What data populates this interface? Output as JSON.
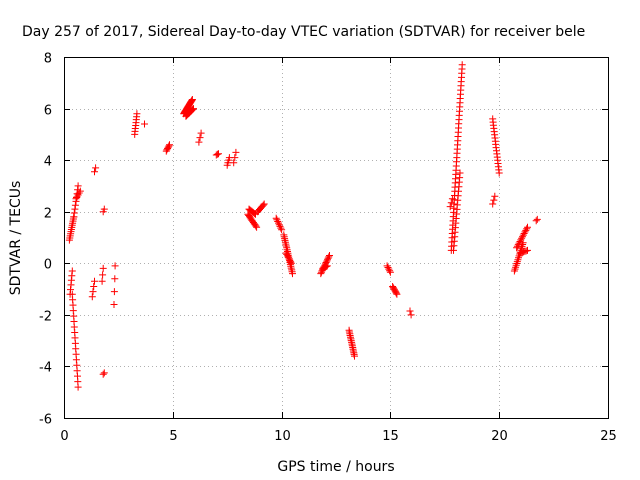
{
  "chart_data": {
    "type": "scatter",
    "title": "Day 257 of 2017, Sidereal Day-to-day VTEC variation (SDTVAR) for receiver bele",
    "xlabel": "GPS time / hours",
    "ylabel": "SDTVAR / TECUs",
    "xlim": [
      0,
      25
    ],
    "ylim": [
      -6,
      8
    ],
    "xticks": [
      0,
      5,
      10,
      15,
      20,
      25
    ],
    "yticks": [
      -6,
      -4,
      -2,
      0,
      2,
      4,
      6,
      8
    ],
    "grid": true,
    "marker": "plus",
    "color": "#ff0000",
    "series": [
      {
        "name": "SDTVAR",
        "segments": [
          {
            "x0": 0.25,
            "y0": 0.9,
            "x1": 0.45,
            "y1": 1.8,
            "n": 12
          },
          {
            "x0": 0.45,
            "y0": 1.8,
            "x1": 0.65,
            "y1": 3.0,
            "n": 9
          },
          {
            "x0": 0.55,
            "y0": 2.5,
            "x1": 0.75,
            "y1": 2.8,
            "n": 5
          },
          {
            "x0": 0.28,
            "y0": -1.2,
            "x1": 0.38,
            "y1": -0.3,
            "n": 6
          },
          {
            "x0": 0.38,
            "y0": -1.2,
            "x1": 0.65,
            "y1": -4.8,
            "n": 18
          },
          {
            "x0": 1.3,
            "y0": -1.3,
            "x1": 1.4,
            "y1": -0.7,
            "n": 4
          },
          {
            "x0": 1.4,
            "y0": 3.55,
            "x1": 1.45,
            "y1": 3.7,
            "n": 2
          },
          {
            "x0": 1.75,
            "y0": -0.7,
            "x1": 1.8,
            "y1": -0.2,
            "n": 3
          },
          {
            "x0": 1.8,
            "y0": 2.0,
            "x1": 1.85,
            "y1": 2.1,
            "n": 2
          },
          {
            "x0": 1.8,
            "y0": -4.3,
            "x1": 1.85,
            "y1": -4.25,
            "n": 2
          },
          {
            "x0": 2.3,
            "y0": -1.6,
            "x1": 2.35,
            "y1": -0.1,
            "n": 4
          },
          {
            "x0": 3.25,
            "y0": 5.0,
            "x1": 3.35,
            "y1": 5.8,
            "n": 8
          },
          {
            "x0": 3.7,
            "y0": 5.4,
            "x1": 3.7,
            "y1": 5.4,
            "n": 1
          },
          {
            "x0": 4.7,
            "y0": 4.35,
            "x1": 4.85,
            "y1": 4.6,
            "n": 6
          },
          {
            "x0": 5.5,
            "y0": 5.8,
            "x1": 5.9,
            "y1": 6.35,
            "n": 22
          },
          {
            "x0": 5.6,
            "y0": 5.7,
            "x1": 5.95,
            "y1": 6.0,
            "n": 12
          },
          {
            "x0": 6.2,
            "y0": 4.7,
            "x1": 6.3,
            "y1": 5.05,
            "n": 3
          },
          {
            "x0": 7.0,
            "y0": 4.2,
            "x1": 7.1,
            "y1": 4.25,
            "n": 3
          },
          {
            "x0": 7.5,
            "y0": 3.8,
            "x1": 7.6,
            "y1": 4.1,
            "n": 4
          },
          {
            "x0": 7.8,
            "y0": 3.9,
            "x1": 7.9,
            "y1": 4.3,
            "n": 3
          },
          {
            "x0": 8.45,
            "y0": 1.9,
            "x1": 8.85,
            "y1": 1.4,
            "n": 12
          },
          {
            "x0": 8.5,
            "y0": 2.1,
            "x1": 8.8,
            "y1": 1.9,
            "n": 8
          },
          {
            "x0": 8.9,
            "y0": 2.0,
            "x1": 9.2,
            "y1": 2.3,
            "n": 8
          },
          {
            "x0": 9.75,
            "y0": 1.75,
            "x1": 10.0,
            "y1": 1.3,
            "n": 8
          },
          {
            "x0": 10.1,
            "y0": 1.1,
            "x1": 10.5,
            "y1": -0.4,
            "n": 22
          },
          {
            "x0": 10.2,
            "y0": 0.4,
            "x1": 10.45,
            "y1": 0.0,
            "n": 8
          },
          {
            "x0": 11.8,
            "y0": -0.4,
            "x1": 12.2,
            "y1": 0.3,
            "n": 14
          },
          {
            "x0": 11.9,
            "y0": -0.2,
            "x1": 12.1,
            "y1": -0.1,
            "n": 6
          },
          {
            "x0": 13.1,
            "y0": -2.6,
            "x1": 13.35,
            "y1": -3.6,
            "n": 16
          },
          {
            "x0": 14.85,
            "y0": -0.1,
            "x1": 15.0,
            "y1": -0.35,
            "n": 5
          },
          {
            "x0": 15.1,
            "y0": -0.9,
            "x1": 15.3,
            "y1": -1.2,
            "n": 8
          },
          {
            "x0": 15.9,
            "y0": -1.85,
            "x1": 15.95,
            "y1": -2.0,
            "n": 2
          },
          {
            "x0": 17.8,
            "y0": 0.5,
            "x1": 18.3,
            "y1": 7.7,
            "n": 45
          },
          {
            "x0": 17.9,
            "y0": 0.5,
            "x1": 18.2,
            "y1": 3.5,
            "n": 18
          },
          {
            "x0": 17.75,
            "y0": 2.2,
            "x1": 17.85,
            "y1": 2.5,
            "n": 3
          },
          {
            "x0": 19.7,
            "y0": 5.6,
            "x1": 20.0,
            "y1": 3.5,
            "n": 18
          },
          {
            "x0": 19.7,
            "y0": 2.3,
            "x1": 19.8,
            "y1": 2.6,
            "n": 3
          },
          {
            "x0": 20.7,
            "y0": -0.3,
            "x1": 21.1,
            "y1": 0.8,
            "n": 16
          },
          {
            "x0": 20.8,
            "y0": 0.6,
            "x1": 21.3,
            "y1": 1.4,
            "n": 14
          },
          {
            "x0": 21.0,
            "y0": 0.4,
            "x1": 21.3,
            "y1": 0.5,
            "n": 6
          },
          {
            "x0": 21.7,
            "y0": 1.65,
            "x1": 21.75,
            "y1": 1.7,
            "n": 2
          }
        ]
      }
    ]
  }
}
